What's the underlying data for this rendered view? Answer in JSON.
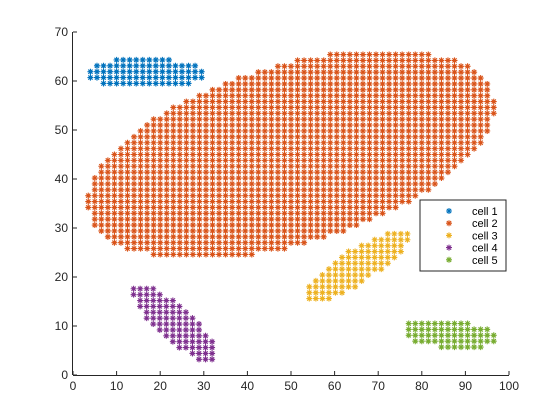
{
  "chart_data": {
    "type": "scatter",
    "marker": "asterisk",
    "xlim": [
      0,
      100
    ],
    "ylim": [
      0,
      70
    ],
    "x_ticks": [
      0,
      10,
      20,
      30,
      40,
      50,
      60,
      70,
      80,
      90,
      100
    ],
    "y_ticks": [
      0,
      10,
      20,
      30,
      40,
      50,
      60,
      70
    ],
    "grid": false,
    "legend_position": "right",
    "series": [
      {
        "name": "cell 1",
        "color": "#0072BD",
        "region": {
          "shape": "ellipse",
          "center": [
            16.5,
            61.5
          ],
          "semi_axes": [
            14,
            3.2
          ],
          "angle_deg": 0,
          "step": [
            1.5,
            1.2
          ]
        }
      },
      {
        "name": "cell 2",
        "color": "#D95319",
        "region": {
          "shape": "ellipse",
          "center": [
            50,
            45
          ],
          "semi_axes": [
            48,
            18.5
          ],
          "angle_deg": 14,
          "step": [
            1.5,
            1.2
          ]
        }
      },
      {
        "name": "cell 3",
        "color": "#EDB120",
        "region": {
          "shape": "ellipse",
          "center": [
            65,
            22.2
          ],
          "semi_axes": [
            13.8,
            3.6
          ],
          "angle_deg": 29,
          "step": [
            1.5,
            1.2
          ]
        }
      },
      {
        "name": "cell 4",
        "color": "#7E2F8E",
        "region": {
          "shape": "ellipse",
          "center": [
            23.2,
            10.7
          ],
          "semi_axes": [
            12.3,
            3.6
          ],
          "angle_deg": -38,
          "step": [
            1.5,
            1.2
          ]
        }
      },
      {
        "name": "cell 5",
        "color": "#77AC30",
        "region": {
          "shape": "ellipse",
          "center": [
            86.5,
            8.3
          ],
          "semi_axes": [
            11,
            3
          ],
          "angle_deg": -5,
          "step": [
            1.5,
            1.2
          ]
        }
      }
    ]
  }
}
